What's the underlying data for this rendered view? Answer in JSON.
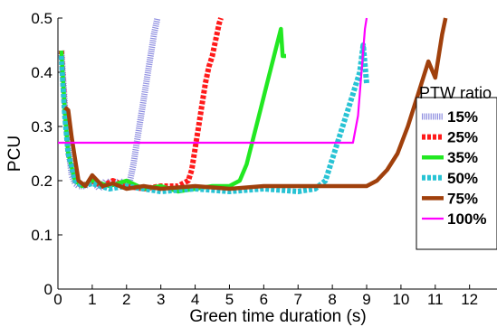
{
  "chart_data": {
    "type": "line",
    "xlabel": "Green time duration (s)",
    "ylabel": "PCU",
    "xlim": [
      0,
      12.8
    ],
    "ylim": [
      0,
      0.5
    ],
    "x_ticks": [
      "0",
      "1",
      "2",
      "3",
      "4",
      "5",
      "6",
      "7",
      "8",
      "9",
      "10",
      "11",
      "12"
    ],
    "y_ticks": [
      "0",
      "0.1",
      "0.2",
      "0.3",
      "0.4",
      "0.5"
    ],
    "grid": false,
    "legend_title": "PTW ratio",
    "legend_position": "right",
    "series": [
      {
        "name": "15%",
        "color": "#8e8ee0",
        "dash": "dotted-thick",
        "points": [
          [
            0.1,
            0.44
          ],
          [
            0.2,
            0.34
          ],
          [
            0.3,
            0.26
          ],
          [
            0.4,
            0.21
          ],
          [
            0.5,
            0.195
          ],
          [
            0.6,
            0.19
          ],
          [
            0.8,
            0.19
          ],
          [
            1.0,
            0.2
          ],
          [
            1.2,
            0.185
          ],
          [
            1.4,
            0.2
          ],
          [
            1.6,
            0.19
          ],
          [
            1.8,
            0.2
          ],
          [
            2.0,
            0.19
          ],
          [
            2.1,
            0.2
          ],
          [
            2.2,
            0.23
          ],
          [
            2.3,
            0.27
          ],
          [
            2.4,
            0.31
          ],
          [
            2.5,
            0.35
          ],
          [
            2.6,
            0.39
          ],
          [
            2.7,
            0.43
          ],
          [
            2.8,
            0.47
          ],
          [
            2.9,
            0.5
          ]
        ]
      },
      {
        "name": "25%",
        "color": "#ff1a1a",
        "dash": "dashed",
        "points": [
          [
            0.1,
            0.44
          ],
          [
            0.2,
            0.33
          ],
          [
            0.3,
            0.25
          ],
          [
            0.5,
            0.2
          ],
          [
            0.7,
            0.19
          ],
          [
            1.0,
            0.2
          ],
          [
            1.3,
            0.19
          ],
          [
            1.6,
            0.2
          ],
          [
            2.0,
            0.19
          ],
          [
            2.5,
            0.185
          ],
          [
            3.0,
            0.19
          ],
          [
            3.5,
            0.19
          ],
          [
            3.8,
            0.2
          ],
          [
            3.9,
            0.22
          ],
          [
            4.0,
            0.26
          ],
          [
            4.1,
            0.3
          ],
          [
            4.2,
            0.34
          ],
          [
            4.3,
            0.38
          ],
          [
            4.4,
            0.41
          ],
          [
            4.5,
            0.43
          ],
          [
            4.6,
            0.46
          ],
          [
            4.7,
            0.49
          ],
          [
            4.75,
            0.5
          ]
        ]
      },
      {
        "name": "35%",
        "color": "#22e822",
        "dash": "solid",
        "points": [
          [
            0.1,
            0.44
          ],
          [
            0.2,
            0.33
          ],
          [
            0.3,
            0.25
          ],
          [
            0.5,
            0.2
          ],
          [
            0.7,
            0.19
          ],
          [
            1.0,
            0.2
          ],
          [
            1.5,
            0.19
          ],
          [
            2.0,
            0.2
          ],
          [
            2.5,
            0.185
          ],
          [
            3.0,
            0.19
          ],
          [
            3.5,
            0.18
          ],
          [
            4.0,
            0.185
          ],
          [
            4.5,
            0.19
          ],
          [
            5.0,
            0.19
          ],
          [
            5.3,
            0.2
          ],
          [
            5.5,
            0.23
          ],
          [
            5.7,
            0.28
          ],
          [
            5.9,
            0.33
          ],
          [
            6.1,
            0.38
          ],
          [
            6.3,
            0.43
          ],
          [
            6.5,
            0.48
          ],
          [
            6.55,
            0.43
          ],
          [
            6.65,
            0.43
          ]
        ]
      },
      {
        "name": "50%",
        "color": "#28c3d4",
        "dash": "dashed",
        "points": [
          [
            0.1,
            0.43
          ],
          [
            0.2,
            0.32
          ],
          [
            0.3,
            0.25
          ],
          [
            0.5,
            0.2
          ],
          [
            0.7,
            0.19
          ],
          [
            1.0,
            0.195
          ],
          [
            1.5,
            0.185
          ],
          [
            2.0,
            0.19
          ],
          [
            3.0,
            0.18
          ],
          [
            4.0,
            0.185
          ],
          [
            5.0,
            0.18
          ],
          [
            6.0,
            0.185
          ],
          [
            7.0,
            0.18
          ],
          [
            7.5,
            0.185
          ],
          [
            7.8,
            0.2
          ],
          [
            8.0,
            0.24
          ],
          [
            8.2,
            0.28
          ],
          [
            8.4,
            0.32
          ],
          [
            8.6,
            0.36
          ],
          [
            8.8,
            0.4
          ],
          [
            8.9,
            0.45
          ],
          [
            9.0,
            0.38
          ]
        ]
      },
      {
        "name": "75%",
        "color": "#a0400c",
        "dash": "solid",
        "points": [
          [
            0.2,
            0.335
          ],
          [
            0.3,
            0.33
          ],
          [
            0.4,
            0.28
          ],
          [
            0.5,
            0.24
          ],
          [
            0.6,
            0.2
          ],
          [
            0.8,
            0.19
          ],
          [
            1.0,
            0.21
          ],
          [
            1.3,
            0.19
          ],
          [
            1.6,
            0.195
          ],
          [
            2.0,
            0.185
          ],
          [
            2.5,
            0.19
          ],
          [
            3.0,
            0.185
          ],
          [
            4.0,
            0.19
          ],
          [
            5.0,
            0.185
          ],
          [
            6.0,
            0.19
          ],
          [
            7.0,
            0.19
          ],
          [
            8.0,
            0.19
          ],
          [
            9.0,
            0.19
          ],
          [
            9.3,
            0.2
          ],
          [
            9.6,
            0.22
          ],
          [
            9.9,
            0.25
          ],
          [
            10.2,
            0.3
          ],
          [
            10.5,
            0.36
          ],
          [
            10.8,
            0.42
          ],
          [
            11.0,
            0.39
          ],
          [
            11.1,
            0.43
          ],
          [
            11.2,
            0.47
          ],
          [
            11.3,
            0.5
          ]
        ]
      },
      {
        "name": "100%",
        "color": "#ff00ff",
        "dash": "solid",
        "points": [
          [
            0.0,
            0.27
          ],
          [
            8.6,
            0.27
          ],
          [
            8.75,
            0.32
          ],
          [
            8.85,
            0.4
          ],
          [
            8.95,
            0.48
          ],
          [
            9.0,
            0.5
          ]
        ]
      }
    ]
  }
}
